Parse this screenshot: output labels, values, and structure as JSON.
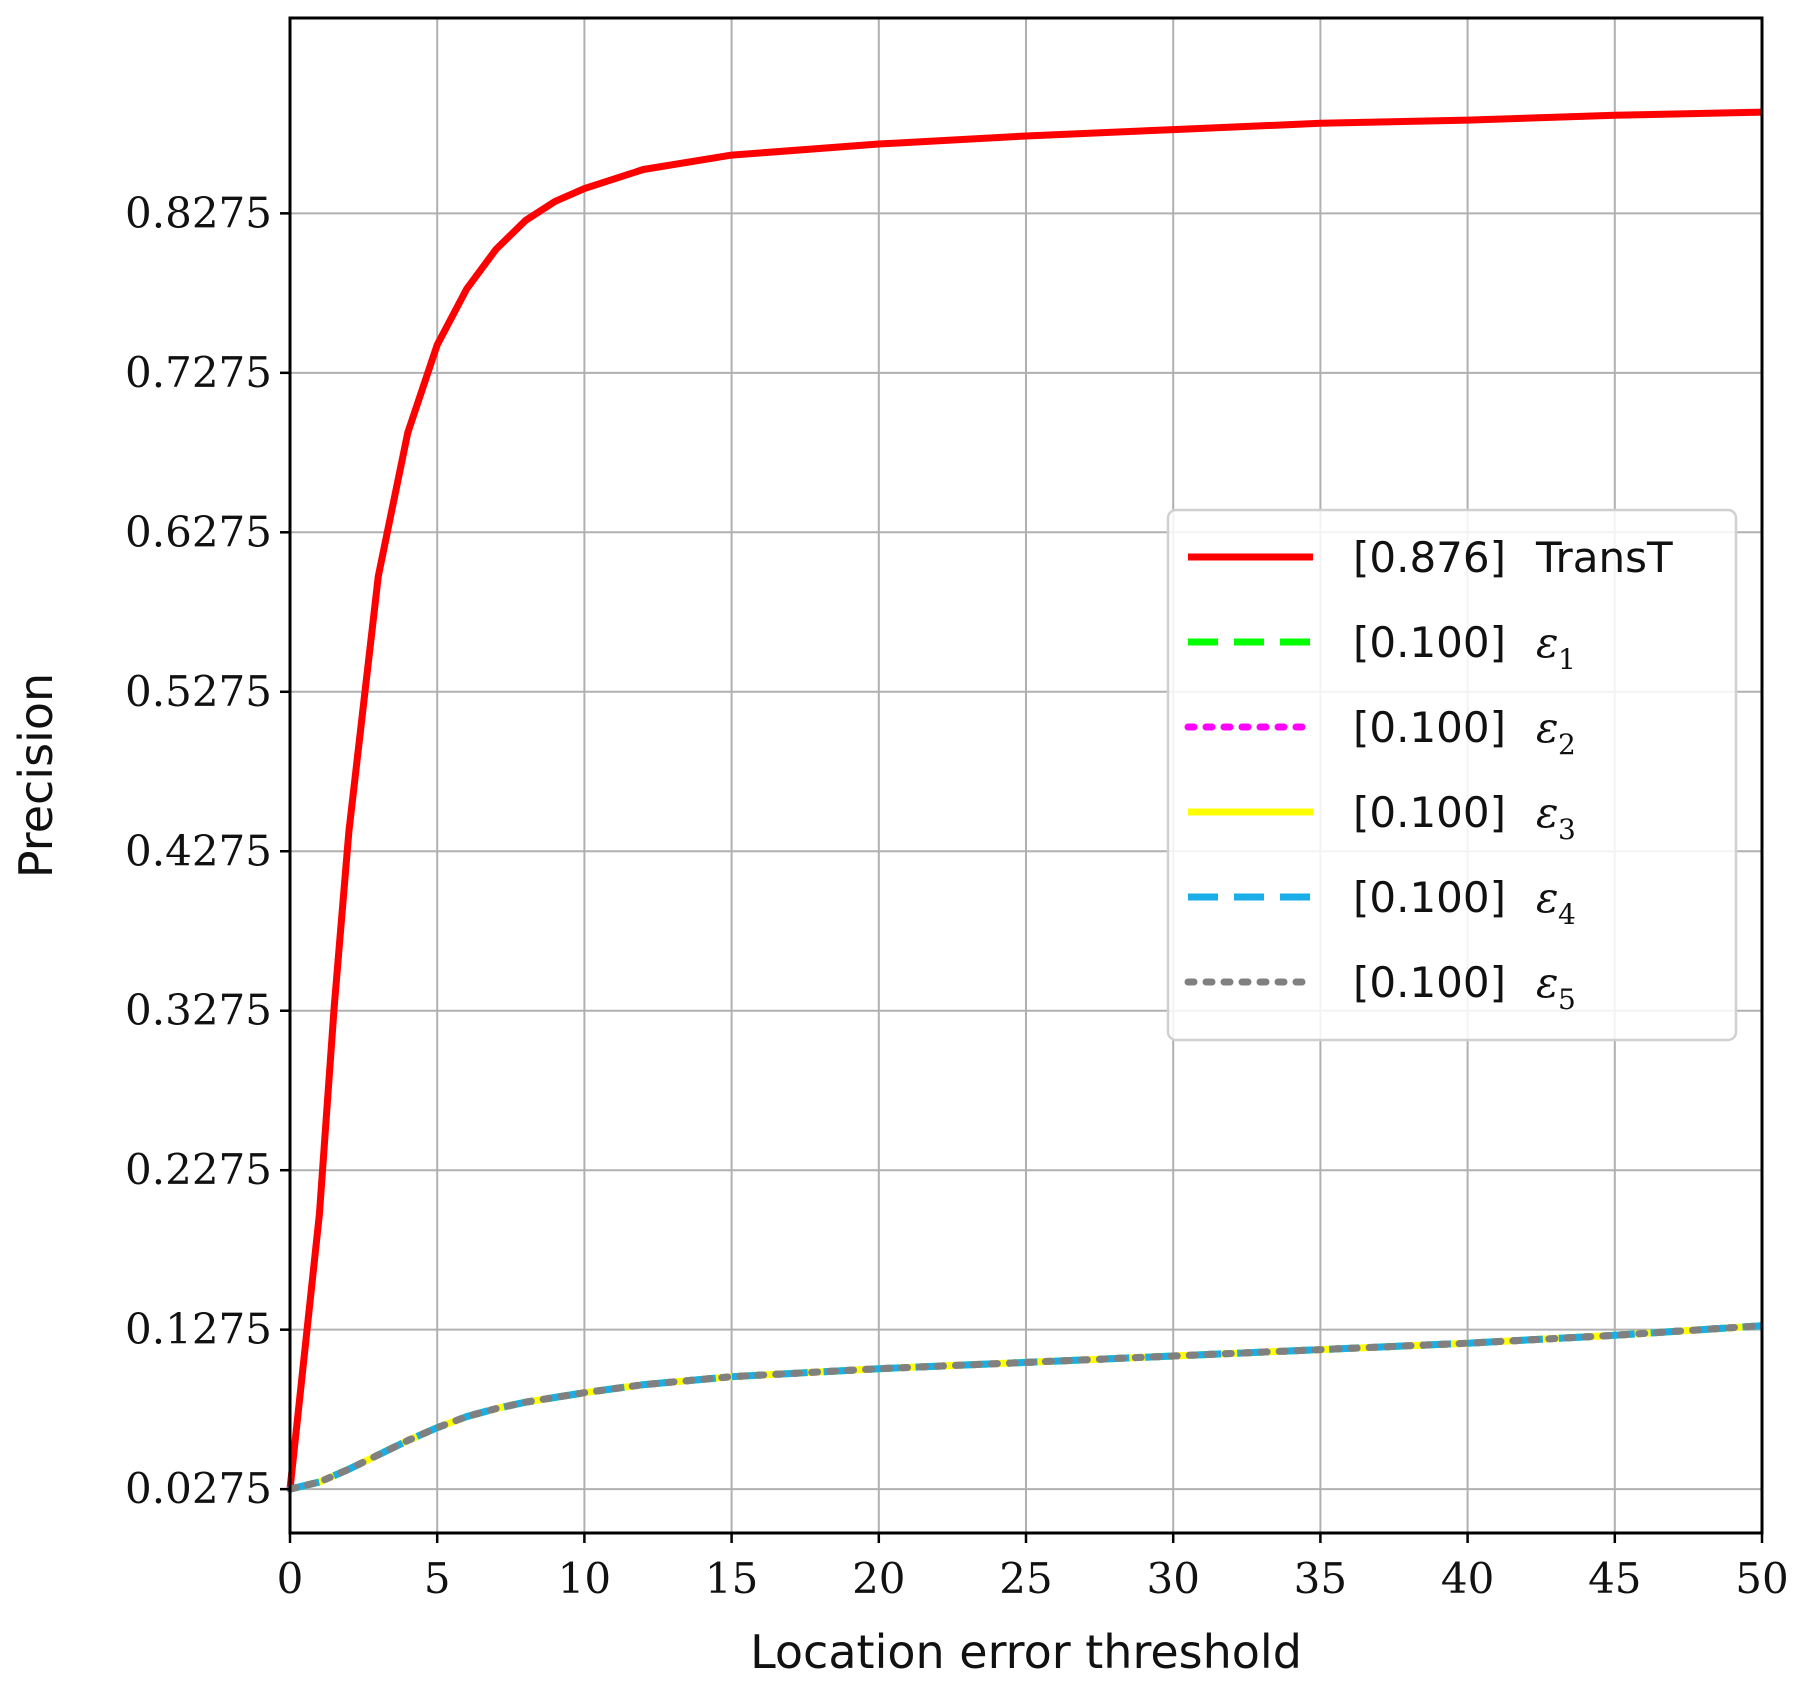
{
  "chart_data": {
    "type": "line",
    "xlabel": "Location error threshold",
    "ylabel": "Precision",
    "xlim": [
      0,
      50
    ],
    "ylim": [
      0.0,
      0.95
    ],
    "xticks": [
      "0",
      "5",
      "10",
      "15",
      "20",
      "25",
      "30",
      "35",
      "40",
      "45",
      "50"
    ],
    "yticks": [
      "0.0275",
      "0.1275",
      "0.2275",
      "0.3275",
      "0.4275",
      "0.5275",
      "0.6275",
      "0.7275",
      "0.8275"
    ],
    "grid": true,
    "legend_position": "center-right",
    "series": [
      {
        "name": "TransT",
        "legend_score": "[0.876]",
        "color": "#ff0000",
        "style": "solid",
        "x": [
          0,
          1,
          1.5,
          2,
          2.5,
          3,
          3.5,
          4,
          5,
          6,
          7,
          8,
          9,
          10,
          12,
          15,
          20,
          25,
          30,
          35,
          40,
          45,
          50
        ],
        "y": [
          0.0275,
          0.2,
          0.33,
          0.44,
          0.52,
          0.6,
          0.645,
          0.69,
          0.745,
          0.78,
          0.805,
          0.823,
          0.835,
          0.843,
          0.855,
          0.864,
          0.871,
          0.876,
          0.88,
          0.884,
          0.886,
          0.889,
          0.891
        ]
      },
      {
        "name": "ε1",
        "legend_score": "[0.100]",
        "sub": "1",
        "color": "#00ff00",
        "style": "dashed",
        "x": [
          0,
          1,
          2,
          3,
          4,
          5,
          6,
          7,
          8,
          10,
          12,
          15,
          20,
          25,
          30,
          35,
          40,
          45,
          50
        ],
        "y": [
          0.0275,
          0.032,
          0.04,
          0.049,
          0.058,
          0.066,
          0.073,
          0.078,
          0.082,
          0.088,
          0.093,
          0.098,
          0.103,
          0.107,
          0.111,
          0.115,
          0.119,
          0.124,
          0.13
        ]
      },
      {
        "name": "ε2",
        "legend_score": "[0.100]",
        "sub": "2",
        "color": "#ff00ff",
        "style": "dotted",
        "x": [
          0,
          1,
          2,
          3,
          4,
          5,
          6,
          7,
          8,
          10,
          12,
          15,
          20,
          25,
          30,
          35,
          40,
          45,
          50
        ],
        "y": [
          0.0275,
          0.032,
          0.04,
          0.049,
          0.058,
          0.066,
          0.073,
          0.078,
          0.082,
          0.088,
          0.093,
          0.098,
          0.103,
          0.107,
          0.111,
          0.115,
          0.119,
          0.124,
          0.13
        ]
      },
      {
        "name": "ε3",
        "legend_score": "[0.100]",
        "sub": "3",
        "color": "#ffff00",
        "style": "solid",
        "x": [
          0,
          1,
          2,
          3,
          4,
          5,
          6,
          7,
          8,
          10,
          12,
          15,
          20,
          25,
          30,
          35,
          40,
          45,
          50
        ],
        "y": [
          0.0275,
          0.032,
          0.04,
          0.049,
          0.058,
          0.066,
          0.073,
          0.078,
          0.082,
          0.088,
          0.093,
          0.098,
          0.103,
          0.107,
          0.111,
          0.115,
          0.119,
          0.124,
          0.13
        ]
      },
      {
        "name": "ε4",
        "legend_score": "[0.100]",
        "sub": "4",
        "color": "#1aaee8",
        "style": "dashed",
        "x": [
          0,
          1,
          2,
          3,
          4,
          5,
          6,
          7,
          8,
          10,
          12,
          15,
          20,
          25,
          30,
          35,
          40,
          45,
          50
        ],
        "y": [
          0.0275,
          0.032,
          0.04,
          0.049,
          0.058,
          0.066,
          0.073,
          0.078,
          0.082,
          0.088,
          0.093,
          0.098,
          0.103,
          0.107,
          0.111,
          0.115,
          0.119,
          0.124,
          0.13
        ]
      },
      {
        "name": "ε5",
        "legend_score": "[0.100]",
        "sub": "5",
        "color": "#808080",
        "style": "dotted",
        "x": [
          0,
          1,
          2,
          3,
          4,
          5,
          6,
          7,
          8,
          10,
          12,
          15,
          20,
          25,
          30,
          35,
          40,
          45,
          50
        ],
        "y": [
          0.0275,
          0.032,
          0.04,
          0.049,
          0.058,
          0.066,
          0.073,
          0.078,
          0.082,
          0.088,
          0.093,
          0.098,
          0.103,
          0.107,
          0.111,
          0.115,
          0.119,
          0.124,
          0.13
        ]
      }
    ]
  }
}
